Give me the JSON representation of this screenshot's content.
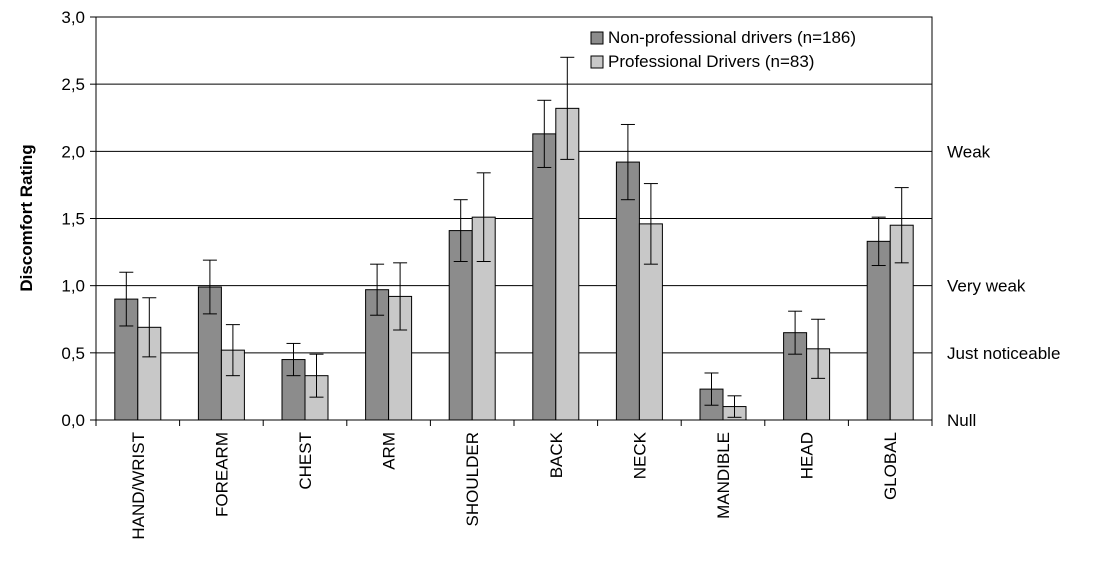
{
  "chart_data": {
    "type": "bar",
    "ylabel": "Discomfort Rating",
    "xlabel": "",
    "ylim": [
      0,
      3
    ],
    "yticks": [
      "0,0",
      "0,5",
      "1,0",
      "1,5",
      "2,0",
      "2,5",
      "3,0"
    ],
    "ytick_values": [
      0,
      0.5,
      1,
      1.5,
      2,
      2.5,
      3
    ],
    "grid": true,
    "legend_position": "top-right",
    "categories": [
      "HAND/WRIST",
      "FOREARM",
      "CHEST",
      "ARM",
      "SHOULDER",
      "BACK",
      "NECK",
      "MANDIBLE",
      "HEAD",
      "GLOBAL"
    ],
    "series": [
      {
        "name": "Non-professional drivers (n=186)",
        "color": "#8c8c8c",
        "values": [
          0.9,
          0.99,
          0.45,
          0.97,
          1.41,
          2.13,
          1.92,
          0.23,
          0.65,
          1.33
        ],
        "error": [
          0.2,
          0.2,
          0.12,
          0.19,
          0.23,
          0.25,
          0.28,
          0.12,
          0.16,
          0.18
        ]
      },
      {
        "name": "Professional Drivers (n=83)",
        "color": "#c8c8c8",
        "values": [
          0.69,
          0.52,
          0.33,
          0.92,
          1.51,
          2.32,
          1.46,
          0.1,
          0.53,
          1.45
        ],
        "error": [
          0.22,
          0.19,
          0.16,
          0.25,
          0.33,
          0.38,
          0.3,
          0.08,
          0.22,
          0.28
        ]
      }
    ],
    "right_annotations": [
      {
        "label": "Null",
        "value": 0
      },
      {
        "label": "Just noticeable",
        "value": 0.5
      },
      {
        "label": "Very weak",
        "value": 1
      },
      {
        "label": "Weak",
        "value": 2
      }
    ]
  }
}
